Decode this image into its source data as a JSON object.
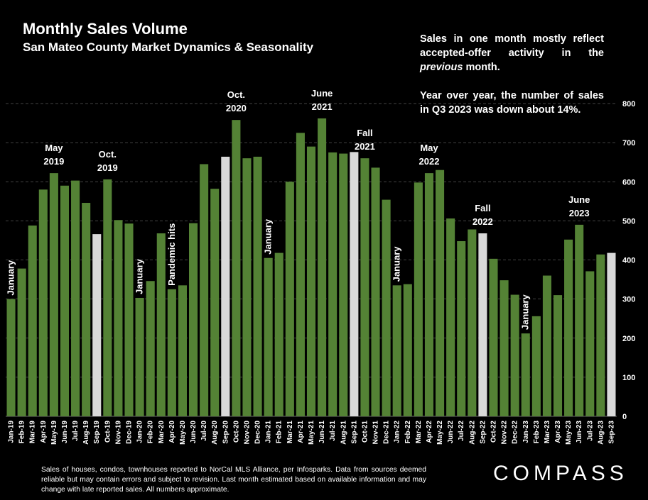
{
  "title": "Monthly Sales Volume",
  "subtitle": "San Mateo County Market Dynamics & Seasonality",
  "note": {
    "p1_a": "Sales in one month mostly reflect accepted-offer activity in the",
    "p1_em": "previous",
    "p1_b": "month.",
    "p2": "Year over year, the number of sales in Q3 2023 was down about 14%."
  },
  "footer": "Sales of houses, condos, townhouses reported to NorCal MLS Alliance, per Infosparks. Data from sources deemed reliable but may contain errors and subject to revision. Last month estimated based on available information and may change with late reported sales. All numbers approximate.",
  "logo": "COMPASS",
  "colors": {
    "bar": "#548235",
    "highlight": "#d9d9d9",
    "grid": "#595959",
    "background": "#000000"
  },
  "chart_data": {
    "type": "bar",
    "title": "Monthly Sales Volume",
    "ylim": [
      0,
      800
    ],
    "yticks": [
      0,
      100,
      200,
      300,
      400,
      500,
      600,
      700,
      800
    ],
    "y_axis_side": "right",
    "grid": true,
    "categories": [
      "Jan-19",
      "Feb-19",
      "Mar-19",
      "Apr-19",
      "May-19",
      "Jun-19",
      "Jul-19",
      "Aug-19",
      "Sep-19",
      "Oct-19",
      "Nov-19",
      "Dec-19",
      "Jan-20",
      "Feb-20",
      "Mar-20",
      "Apr-20",
      "May-20",
      "Jun-20",
      "Jul-20",
      "Aug-20",
      "Sep-20",
      "Oct-20",
      "Nov-20",
      "Dec-20",
      "Jan-21",
      "Feb-21",
      "Mar-21",
      "Apr-21",
      "May-21",
      "Jun-21",
      "Jul-21",
      "Aug-21",
      "Sep-21",
      "Oct-21",
      "Nov-21",
      "Dec-21",
      "Jan-22",
      "Feb-22",
      "Mar-22",
      "Apr-22",
      "May-22",
      "Jun-22",
      "Jul-22",
      "Aug-22",
      "Sep-22",
      "Oct-22",
      "Nov-22",
      "Dec-22",
      "Jan-23",
      "Feb-23",
      "Mar-23",
      "Apr-23",
      "May-23",
      "Jun-23",
      "Jul-23",
      "Aug-23",
      "Sep-23"
    ],
    "values": [
      300,
      378,
      488,
      580,
      622,
      590,
      603,
      546,
      466,
      606,
      502,
      493,
      303,
      346,
      468,
      325,
      335,
      494,
      645,
      582,
      664,
      758,
      660,
      664,
      405,
      418,
      600,
      725,
      690,
      762,
      675,
      672,
      676,
      660,
      636,
      554,
      335,
      338,
      598,
      622,
      630,
      506,
      448,
      478,
      468,
      403,
      348,
      311,
      212,
      256,
      360,
      310,
      452,
      490,
      371,
      414,
      418
    ],
    "highlighted": [
      "Sep-19",
      "Sep-20",
      "Sep-21",
      "Sep-22",
      "Sep-23"
    ],
    "annotations": [
      {
        "text": [
          "January"
        ],
        "category": "Jan-19",
        "rotated": true
      },
      {
        "text": [
          "May",
          "2019"
        ],
        "category": "May-19",
        "rotated": false
      },
      {
        "text": [
          "Oct.",
          "2019"
        ],
        "category": "Oct-19",
        "rotated": false
      },
      {
        "text": [
          "January"
        ],
        "category": "Jan-20",
        "rotated": true
      },
      {
        "text": [
          "Pandemic hits"
        ],
        "category": "Apr-20",
        "rotated": true
      },
      {
        "text": [
          "Oct.",
          "2020"
        ],
        "category": "Oct-20",
        "rotated": false
      },
      {
        "text": [
          "January"
        ],
        "category": "Jan-21",
        "rotated": true
      },
      {
        "text": [
          "June",
          "2021"
        ],
        "category": "Jun-21",
        "rotated": false
      },
      {
        "text": [
          "Fall",
          "2021"
        ],
        "category": "Oct-21",
        "rotated": false
      },
      {
        "text": [
          "January"
        ],
        "category": "Jan-22",
        "rotated": true
      },
      {
        "text": [
          "May",
          "2022"
        ],
        "category": "Apr-22",
        "rotated": false
      },
      {
        "text": [
          "Fall",
          "2022"
        ],
        "category": "Sep-22",
        "rotated": false
      },
      {
        "text": [
          "January"
        ],
        "category": "Jan-23",
        "rotated": true
      },
      {
        "text": [
          "June",
          "2023"
        ],
        "category": "Jun-23",
        "rotated": false
      }
    ]
  }
}
